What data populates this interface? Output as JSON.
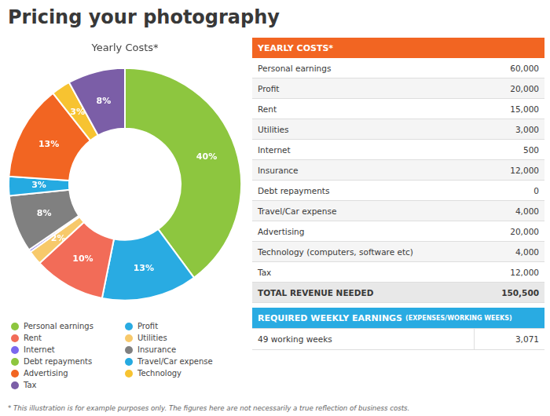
{
  "title": "Pricing your photography",
  "background": "#FFFFFF",
  "chart_data": {
    "type": "doughnut",
    "title": "Yearly Costs*",
    "values": [
      60000,
      20000,
      15000,
      3000,
      500,
      12000,
      4000,
      20000,
      4000,
      12000
    ],
    "colors": [
      "#8DC63F",
      "#29ABE2",
      "#F26C58",
      "#F7C96B",
      "#7B68EE",
      "#808080",
      "#25AAE1",
      "#F26522",
      "#F7C331",
      "#7B5EA7"
    ],
    "value_labels": [
      "40%",
      "13%",
      "10%",
      "2%",
      null,
      "8%",
      "3%",
      "13%",
      "3%",
      "8%"
    ],
    "data_labels": true
  },
  "legend_columns": [
    [
      {
        "label": "Personal earnings",
        "color": "#8DC63F"
      },
      {
        "label": "Rent",
        "color": "#F26C58"
      },
      {
        "label": "Internet",
        "color": "#7B68EE"
      },
      {
        "label": "Debt repayments",
        "color": "#8DC63F"
      },
      {
        "label": "Advertising",
        "color": "#F26522"
      },
      {
        "label": "Tax",
        "color": "#7B5EA7"
      }
    ],
    [
      {
        "label": "Profit",
        "color": "#29ABE2"
      },
      {
        "label": "Utilities",
        "color": "#F7C96B"
      },
      {
        "label": "Insurance",
        "color": "#808080"
      },
      {
        "label": "Travel/Car expense",
        "color": "#25AAE1"
      },
      {
        "label": "Technology",
        "color": "#F7C331"
      }
    ]
  ],
  "table": {
    "header": "YEARLY COSTS*",
    "header_color": "#F26522",
    "total_color": "#E8E8E8",
    "rows": [
      {
        "label": "Personal earnings",
        "value": "60,000"
      },
      {
        "label": "Profit",
        "value": "20,000"
      },
      {
        "label": "Rent",
        "value": "15,000"
      },
      {
        "label": "Utilities",
        "value": "3,000"
      },
      {
        "label": "Internet",
        "value": "500"
      },
      {
        "label": "Insurance",
        "value": "12,000"
      },
      {
        "label": "Debt repayments",
        "value": "0"
      },
      {
        "label": "Travel/Car expense",
        "value": "4,000"
      },
      {
        "label": "Advertising",
        "value": "20,000"
      },
      {
        "label": "Technology (computers, software etc)",
        "value": "4,000"
      },
      {
        "label": "Tax",
        "value": "12,000"
      },
      {
        "label": "TOTAL REVENUE NEEDED",
        "value": "150,500",
        "total": true
      }
    ]
  },
  "weekly": {
    "header": "REQUIRED WEEKLY EARNINGS",
    "subheader": "(EXPENSES/WORKING WEEKS)",
    "color": "#29ABE2",
    "row_label": "49 working weeks",
    "row_value": "3,071"
  },
  "footnote": "* This illustration is for example purposes only. The figures here are not necessarily a true reflection of business costs."
}
